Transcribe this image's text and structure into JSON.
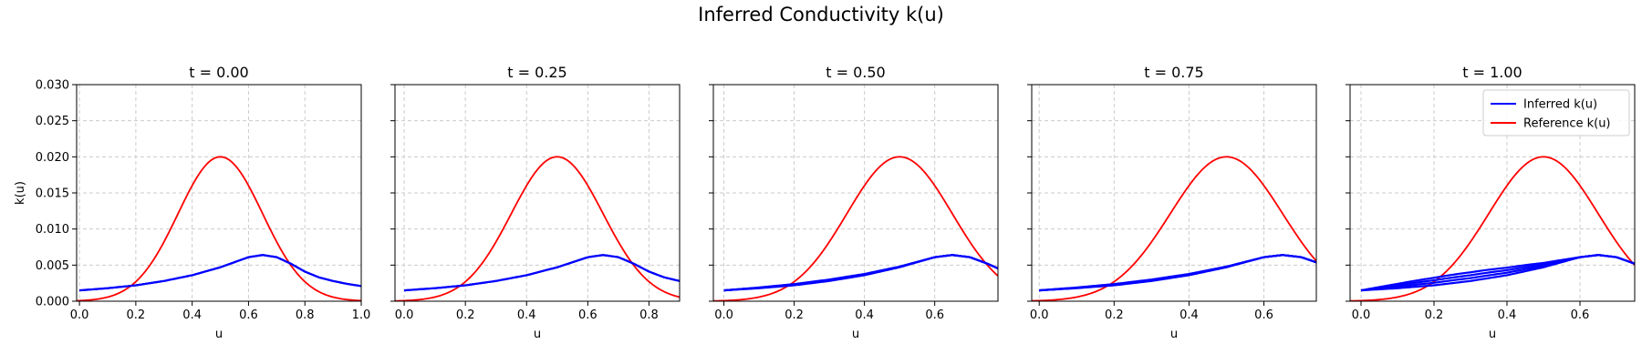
{
  "figure": {
    "title": "Inferred Conductivity k(u)"
  },
  "chart_data": {
    "type": "line",
    "title": "Inferred Conductivity k(u)",
    "xlabel": "u",
    "ylabel": "k(u)",
    "ylim": [
      0.0,
      0.03
    ],
    "yticks": [
      "0.000",
      "0.005",
      "0.010",
      "0.015",
      "0.020",
      "0.025",
      "0.030"
    ],
    "grid": true,
    "legend": {
      "placement": "upper-right",
      "panel": 4,
      "entries": [
        {
          "name": "Inferred k(u)",
          "color": "#0000ff"
        },
        {
          "name": "Reference k(u)",
          "color": "#ff0000"
        }
      ]
    },
    "colors": {
      "inferred": "#0000ff",
      "reference": "#ff0000",
      "grid": "#cccccc"
    },
    "reference_curve": {
      "name": "Reference k(u)",
      "peak_u": 0.5,
      "peak_k": 0.02,
      "sigma": 0.15,
      "comment_free": true
    },
    "inferred_profile": {
      "name": "Inferred k(u)",
      "u": [
        0.0,
        0.1,
        0.2,
        0.3,
        0.4,
        0.5,
        0.55,
        0.6,
        0.65,
        0.7,
        0.75,
        0.8,
        0.85,
        0.9,
        0.95,
        1.0
      ],
      "k": [
        0.0015,
        0.0018,
        0.0022,
        0.0028,
        0.0036,
        0.0047,
        0.0054,
        0.0061,
        0.0064,
        0.0061,
        0.0052,
        0.0041,
        0.0033,
        0.0028,
        0.0024,
        0.0021
      ]
    },
    "panels": [
      {
        "title": "t = 0.00",
        "xlim": [
          -0.01,
          1.0
        ],
        "xticks": [
          "0.0",
          "0.2",
          "0.4",
          "0.6",
          "0.8",
          "1.0"
        ],
        "xtick_values": [
          0.0,
          0.2,
          0.4,
          0.6,
          0.8,
          1.0
        ],
        "inferred_u_max": 1.0,
        "loop_spread": 0.0
      },
      {
        "title": "t = 0.25",
        "xlim": [
          -0.03,
          0.9
        ],
        "xticks": [
          "0.0",
          "0.2",
          "0.4",
          "0.6",
          "0.8"
        ],
        "xtick_values": [
          0.0,
          0.2,
          0.4,
          0.6,
          0.8
        ],
        "inferred_u_max": 0.9,
        "loop_spread": 0.0
      },
      {
        "title": "t = 0.50",
        "xlim": [
          -0.03,
          0.78
        ],
        "xticks": [
          "0.0",
          "0.2",
          "0.4",
          "0.6"
        ],
        "xtick_values": [
          0.0,
          0.2,
          0.4,
          0.6
        ],
        "inferred_u_max": 0.78,
        "loop_spread": 0.0002
      },
      {
        "title": "t = 0.75",
        "xlim": [
          -0.02,
          0.74
        ],
        "xticks": [
          "0.0",
          "0.2",
          "0.4",
          "0.6"
        ],
        "xtick_values": [
          0.0,
          0.2,
          0.4,
          0.6
        ],
        "inferred_u_max": 0.74,
        "loop_spread": 0.0002
      },
      {
        "title": "t = 1.00",
        "xlim": [
          -0.03,
          0.75
        ],
        "xticks": [
          "0.0",
          "0.2",
          "0.4",
          "0.6"
        ],
        "xtick_values": [
          0.0,
          0.2,
          0.4,
          0.6
        ],
        "inferred_u_max": 0.75,
        "loop_spread": 0.0012
      }
    ]
  }
}
